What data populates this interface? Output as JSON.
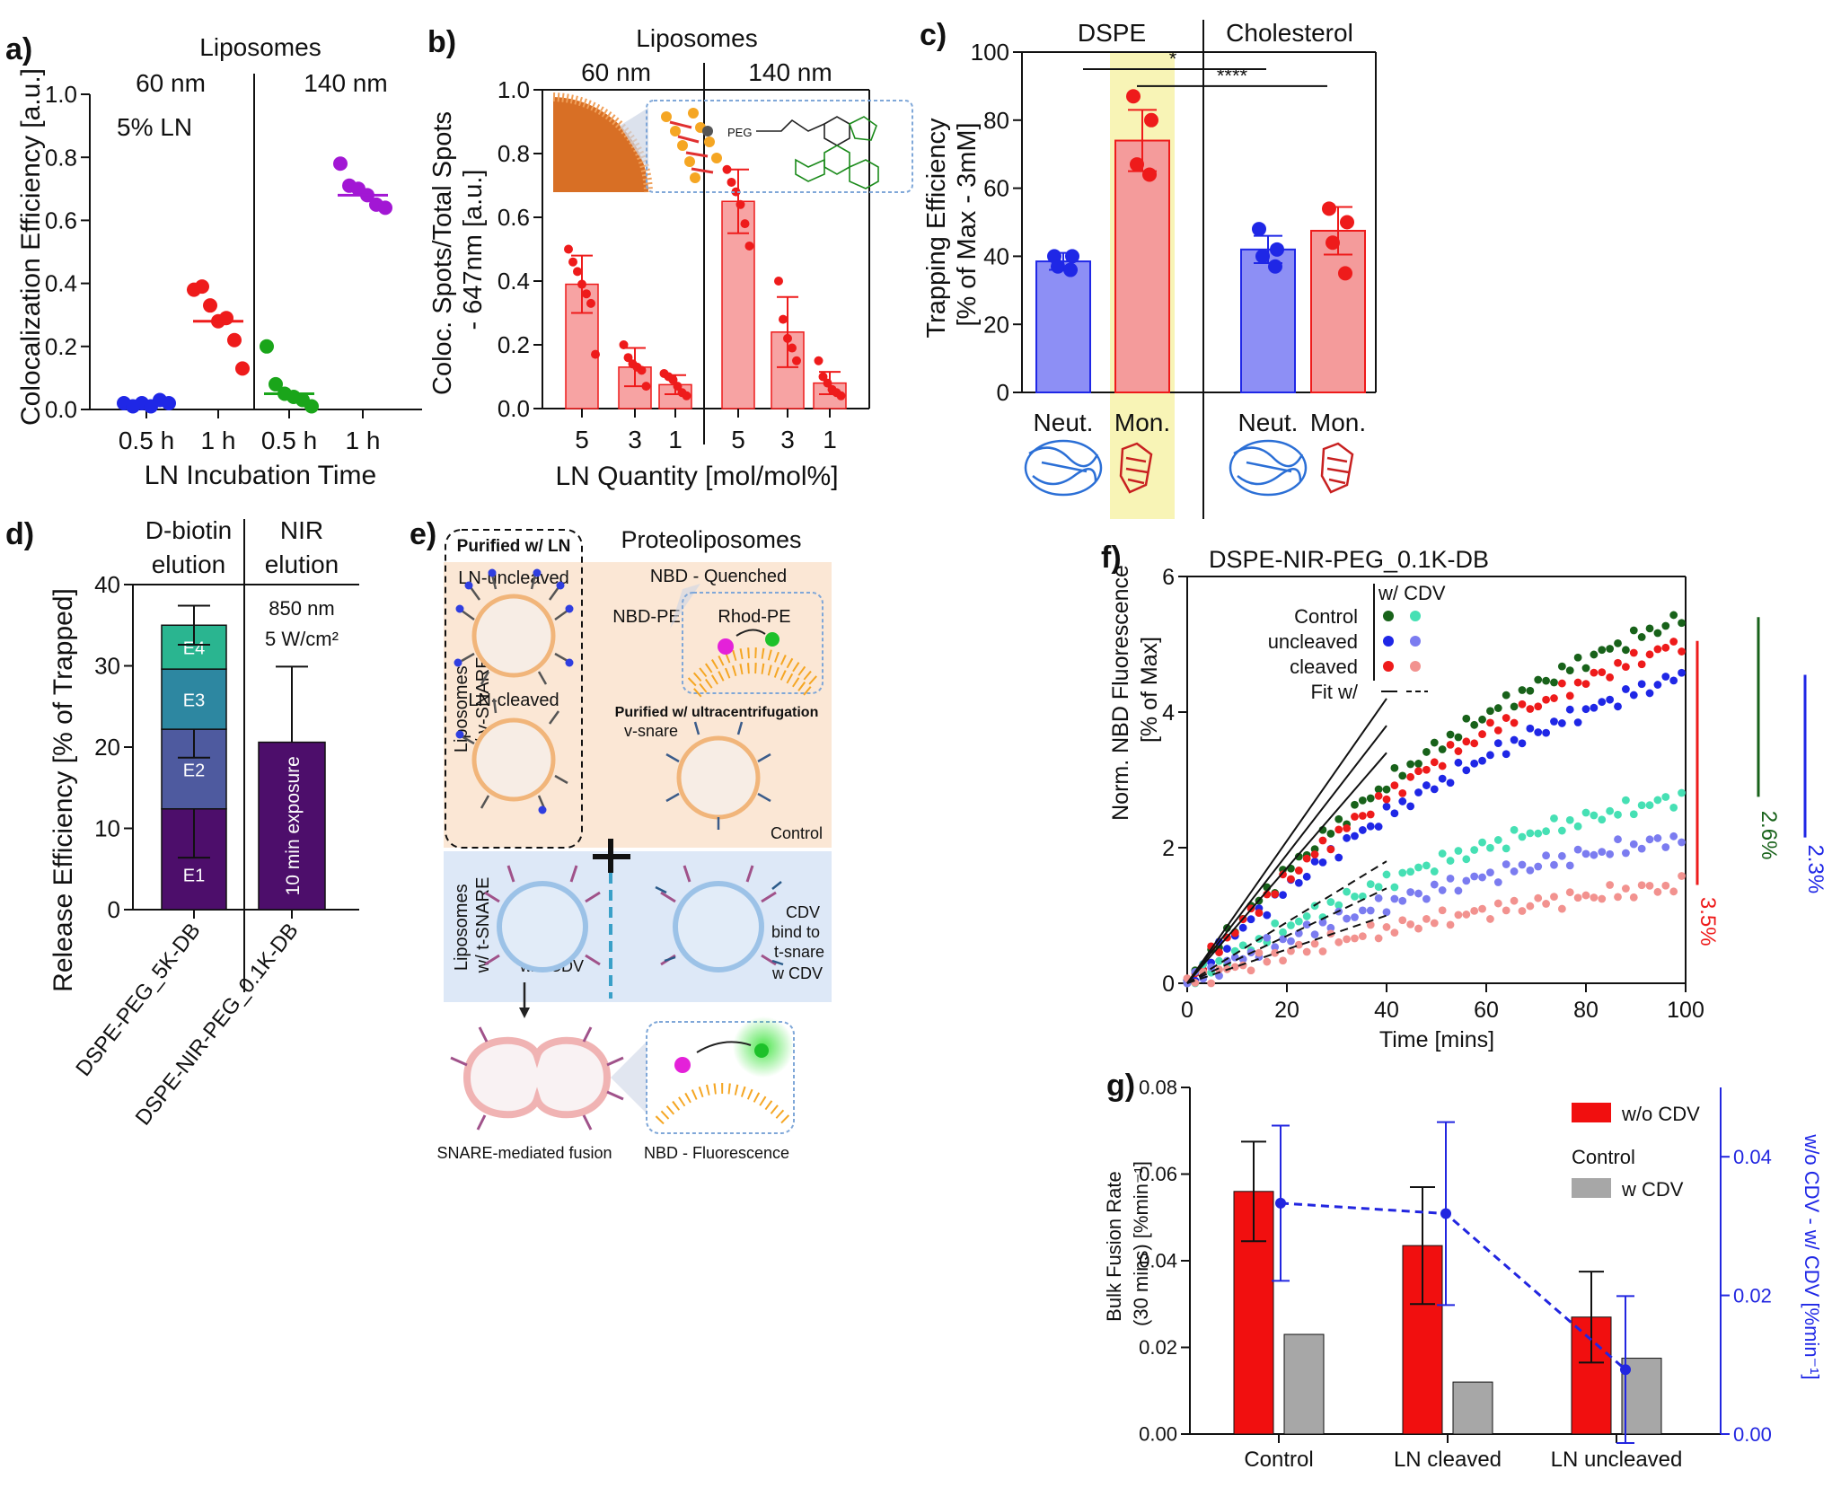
{
  "colors": {
    "blue": "#1f27e6",
    "red": "#ee1b1b",
    "green": "#1aa51a",
    "purple": "#a217d4",
    "pink_bar": "#f7a3a3",
    "blue_bar": "#8d8ff5",
    "red_bar": "#f49b9b",
    "highlight": "#f8f4b6",
    "dark_green": "#18621a",
    "teal": "#46e0b4",
    "lavender": "#7b7cf0",
    "salmon": "#f2928f",
    "e1": "#4d0e6b",
    "e2": "#4e5a9f",
    "e3": "#2d87a1",
    "e4": "#2ab590",
    "grey": "#a7a7a7",
    "fusion_red": "#f10f0f",
    "dashed_blue": "#2226e0"
  },
  "chart_data": [
    {
      "panel": "a)",
      "type": "scatter",
      "title": "Liposomes",
      "groups": [
        "60 nm",
        "140 nm"
      ],
      "annotation": "5% LN",
      "xlabel": "LN Incubation Time",
      "ylabel": "Colocalization Efficiency [a.u.]",
      "ylim": [
        0,
        1
      ],
      "yticks": [
        "0.0",
        "0.2",
        "0.4",
        "0.6",
        "0.8",
        "1.0"
      ],
      "categories": [
        "0.5 h",
        "1 h",
        "0.5 h",
        "1 h"
      ],
      "series": [
        {
          "category": 0,
          "color": "blue",
          "points": [
            0.02,
            0.01,
            0.02,
            0.01,
            0.03,
            0.02
          ],
          "mean": 0.02
        },
        {
          "category": 1,
          "color": "red",
          "points": [
            0.38,
            0.39,
            0.33,
            0.28,
            0.29,
            0.22,
            0.13
          ],
          "mean": 0.28
        },
        {
          "category": 2,
          "color": "green",
          "points": [
            0.2,
            0.08,
            0.05,
            0.04,
            0.03,
            0.01
          ],
          "mean": 0.05
        },
        {
          "category": 3,
          "color": "purple",
          "points": [
            0.78,
            0.71,
            0.7,
            0.68,
            0.65,
            0.64
          ],
          "mean": 0.68
        }
      ]
    },
    {
      "panel": "b)",
      "type": "bar",
      "title": "Liposomes",
      "groups": [
        "60 nm",
        "140 nm"
      ],
      "xlabel": "LN Quantity [mol/mol%]",
      "ylabel": "Coloc. Spots/Total Spots - 647nm [a.u.]",
      "ylim": [
        0,
        1
      ],
      "yticks": [
        "0.0",
        "0.2",
        "0.4",
        "0.6",
        "0.8",
        "1.0"
      ],
      "categories": [
        "5",
        "3",
        "1",
        "5",
        "3",
        "1"
      ],
      "values": [
        0.39,
        0.13,
        0.075,
        0.65,
        0.24,
        0.08
      ],
      "errors": [
        0.09,
        0.06,
        0.03,
        0.1,
        0.11,
        0.035
      ],
      "points": [
        [
          0.5,
          0.46,
          0.43,
          0.39,
          0.36,
          0.33,
          0.17
        ],
        [
          0.2,
          0.16,
          0.14,
          0.13,
          0.12,
          0.07
        ],
        [
          0.11,
          0.1,
          0.09,
          0.07,
          0.05,
          0.04
        ],
        [
          0.75,
          0.71,
          0.68,
          0.64,
          0.58,
          0.51
        ],
        [
          0.4,
          0.28,
          0.22,
          0.19,
          0.15
        ],
        [
          0.15,
          0.1,
          0.08,
          0.06,
          0.05,
          0.04
        ]
      ],
      "inset_label": "PEG"
    },
    {
      "panel": "c)",
      "type": "bar",
      "groups": [
        "DSPE",
        "Cholesterol"
      ],
      "ylabel": "Trapping Efficiency [% of Max - 3mM]",
      "ylim": [
        0,
        100
      ],
      "yticks": [
        "0",
        "20",
        "40",
        "60",
        "80",
        "100"
      ],
      "categories": [
        "Neut.",
        "Mon.",
        "Neut.",
        "Mon."
      ],
      "values": [
        38.5,
        74,
        42,
        47.5
      ],
      "errors": [
        2.5,
        9,
        4,
        7
      ],
      "points": [
        [
          40,
          40,
          37,
          36
        ],
        [
          87,
          80,
          67,
          64
        ],
        [
          48,
          42,
          40,
          37
        ],
        [
          54,
          50,
          44,
          35
        ]
      ],
      "significance": [
        "*",
        "****"
      ]
    },
    {
      "panel": "d)",
      "type": "stacked_bar",
      "groups": [
        "D-biotin elution",
        "NIR elution"
      ],
      "ylabel": "Release Efficiency [% of Trapped]",
      "ylim": [
        0,
        40
      ],
      "yticks": [
        "0",
        "10",
        "20",
        "30",
        "40"
      ],
      "categories": [
        "DSPE-PEG_5K-DB",
        "DSPE-NIR-PEG_0.1K-DB"
      ],
      "stack": [
        {
          "label": "E1",
          "value": 12.4
        },
        {
          "label": "E2",
          "value": 9.8
        },
        {
          "label": "E3",
          "value": 7.4
        },
        {
          "label": "E4",
          "value": 5.4
        }
      ],
      "stack_errors": [
        6,
        3.5,
        0,
        2.4
      ],
      "nir_value": 20.6,
      "nir_error": 9.3,
      "nir_conditions": [
        "850 nm",
        "5 W/cm²"
      ],
      "nir_bar_label": "10 min exposure"
    },
    {
      "panel": "f)",
      "type": "line",
      "title": "DSPE-NIR-PEG_0.1K-DB",
      "xlabel": "Time [mins]",
      "ylabel": "Norm. NBD Fluorescence [% of Max]",
      "xlim": [
        0,
        100
      ],
      "ylim": [
        0,
        6
      ],
      "xticks": [
        "0",
        "20",
        "40",
        "60",
        "80",
        "100"
      ],
      "yticks": [
        "0",
        "2",
        "4",
        "6"
      ],
      "legend": {
        "rows": [
          "Control",
          "uncleaved",
          "cleaved",
          "Fit w/"
        ],
        "col_header": "w/ CDV"
      },
      "series": [
        {
          "name": "Control",
          "color": "dark_green",
          "final": 5.4,
          "fit_slope": 0.105
        },
        {
          "name": "uncleaved",
          "color": "blue",
          "final": 4.55,
          "fit_slope": 0.085
        },
        {
          "name": "cleaved",
          "color": "red",
          "final": 5.05,
          "fit_slope": 0.095
        },
        {
          "name": "Control w/ CDV",
          "color": "teal",
          "final": 2.75,
          "fit_slope": 0.045
        },
        {
          "name": "uncleaved w/ CDV",
          "color": "lavender",
          "final": 2.15,
          "fit_slope": 0.035
        },
        {
          "name": "cleaved w/ CDV",
          "color": "salmon",
          "final": 1.45,
          "fit_slope": 0.025
        }
      ],
      "side_labels": [
        "2.6%",
        "3.5%",
        "2.3%"
      ]
    },
    {
      "panel": "g)",
      "type": "bar",
      "xlabel": "",
      "ylabel": "Bulk Fusion Rate (30 mins) [%min⁻¹]",
      "y2label": "w/o CDV - w/ CDV [%min⁻¹]",
      "ylim": [
        0,
        0.08
      ],
      "yticks": [
        "0.00",
        "0.02",
        "0.04",
        "0.06",
        "0.08"
      ],
      "y2lim": [
        0,
        0.05
      ],
      "y2ticks": [
        "0.00",
        "0.02",
        "0.04"
      ],
      "categories": [
        "Control",
        "LN cleaved",
        "LN uncleaved"
      ],
      "series": [
        {
          "name": "w/o CDV",
          "values": [
            0.056,
            0.0435,
            0.027
          ],
          "errors": [
            0.0115,
            0.0135,
            0.0105
          ]
        },
        {
          "name": "w CDV",
          "values": [
            0.023,
            0.012,
            0.0175
          ],
          "errors": [
            0,
            0,
            0
          ]
        }
      ],
      "difference": {
        "values": [
          0.0333,
          0.0318,
          0.0093
        ],
        "errors": [
          0.0112,
          0.0132,
          0.0106
        ]
      },
      "legend": {
        "first": "w/o CDV",
        "group": "Control",
        "second": "w CDV"
      }
    }
  ],
  "panel_e": {
    "label": "e)",
    "title": "Proteoliposomes",
    "purified_ln": "Purified w/ LN",
    "ln_uncleaved": "LN-uncleaved",
    "ln_cleaved": "LN-cleaved",
    "nbd_quenched": "NBD - Quenched",
    "nbd_pe": "NBD-PE",
    "rhod_pe": "Rhod-PE",
    "purified_uc": "Purified w/ ultracentrifugation",
    "v_snare": "v-snare",
    "control": "Control",
    "row1_label": "Liposomes w/ v-SNARE",
    "row2_label": "Liposomes w/ t-SNARE",
    "wo_cdv": "w/o CDV",
    "w_cdv": "w CDV",
    "cdv_bind": "CDV bind to t-snare",
    "snare_fusion": "SNARE-mediated fusion",
    "nbd_fluor": "NBD - Fluorescence"
  },
  "panel_labels": {
    "f": "f)",
    "g": "g)"
  }
}
